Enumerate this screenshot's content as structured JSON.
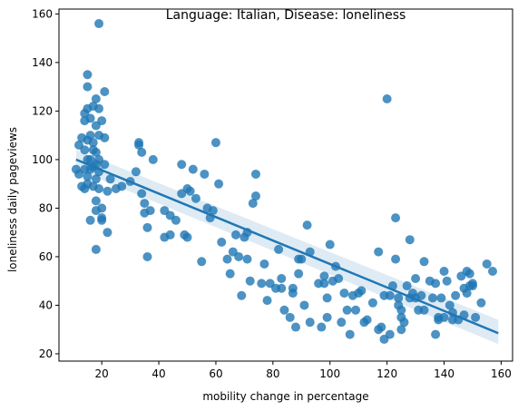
{
  "chart_data": {
    "type": "scatter",
    "title": "Language: Italian, Disease: loneliness",
    "xlabel": "mobility change in percentage",
    "ylabel": "loneliness daily pageviews",
    "xlim": [
      5,
      164
    ],
    "ylim": [
      17,
      162
    ],
    "xticks": [
      20,
      40,
      60,
      80,
      100,
      120,
      140,
      160
    ],
    "yticks": [
      20,
      40,
      60,
      80,
      100,
      120,
      140,
      160
    ],
    "grid": false,
    "point_color": "#1f77b4",
    "regression": {
      "x": [
        11,
        159
      ],
      "y": [
        100,
        28.5
      ],
      "ci_upper": [
        104,
        34
      ],
      "ci_lower": [
        96,
        24
      ]
    },
    "points": [
      [
        11,
        96
      ],
      [
        12,
        106
      ],
      [
        12,
        94
      ],
      [
        13,
        89
      ],
      [
        13,
        109
      ],
      [
        14,
        119
      ],
      [
        14,
        116
      ],
      [
        14,
        104
      ],
      [
        14,
        96
      ],
      [
        14,
        88
      ],
      [
        15,
        135
      ],
      [
        15,
        130
      ],
      [
        15,
        121
      ],
      [
        15,
        108
      ],
      [
        15,
        100
      ],
      [
        15,
        93
      ],
      [
        15,
        90
      ],
      [
        16,
        117
      ],
      [
        16,
        110
      ],
      [
        16,
        100
      ],
      [
        16,
        96
      ],
      [
        16,
        75
      ],
      [
        17,
        122
      ],
      [
        17,
        107
      ],
      [
        17,
        104
      ],
      [
        17,
        97
      ],
      [
        17,
        89
      ],
      [
        18,
        125
      ],
      [
        18,
        114
      ],
      [
        18,
        103
      ],
      [
        18,
        98
      ],
      [
        18,
        92
      ],
      [
        18,
        83
      ],
      [
        18,
        79
      ],
      [
        18,
        63
      ],
      [
        19,
        156
      ],
      [
        19,
        121
      ],
      [
        19,
        110
      ],
      [
        19,
        100
      ],
      [
        19,
        95
      ],
      [
        19,
        88
      ],
      [
        20,
        116
      ],
      [
        20,
        80
      ],
      [
        20,
        76
      ],
      [
        20,
        75
      ],
      [
        21,
        128
      ],
      [
        21,
        109
      ],
      [
        21,
        98
      ],
      [
        22,
        87
      ],
      [
        22,
        70
      ],
      [
        23,
        92
      ],
      [
        25,
        88
      ],
      [
        27,
        89
      ],
      [
        30,
        91
      ],
      [
        32,
        95
      ],
      [
        33,
        107
      ],
      [
        33,
        106
      ],
      [
        34,
        103
      ],
      [
        34,
        86
      ],
      [
        35,
        82
      ],
      [
        35,
        78
      ],
      [
        36,
        60
      ],
      [
        36,
        72
      ],
      [
        37,
        79
      ],
      [
        38,
        100
      ],
      [
        42,
        79
      ],
      [
        42,
        68
      ],
      [
        44,
        77
      ],
      [
        44,
        69
      ],
      [
        46,
        75
      ],
      [
        48,
        98
      ],
      [
        48,
        86
      ],
      [
        49,
        69
      ],
      [
        50,
        88
      ],
      [
        50,
        68
      ],
      [
        51,
        87
      ],
      [
        52,
        96
      ],
      [
        53,
        84
      ],
      [
        55,
        58
      ],
      [
        56,
        94
      ],
      [
        57,
        80
      ],
      [
        58,
        76
      ],
      [
        59,
        79
      ],
      [
        60,
        107
      ],
      [
        61,
        90
      ],
      [
        62,
        66
      ],
      [
        64,
        59
      ],
      [
        65,
        53
      ],
      [
        66,
        62
      ],
      [
        67,
        69
      ],
      [
        68,
        60
      ],
      [
        69,
        44
      ],
      [
        70,
        68
      ],
      [
        71,
        70
      ],
      [
        71,
        59
      ],
      [
        72,
        50
      ],
      [
        73,
        82
      ],
      [
        74,
        94
      ],
      [
        74,
        85
      ],
      [
        76,
        49
      ],
      [
        77,
        57
      ],
      [
        78,
        42
      ],
      [
        79,
        49
      ],
      [
        81,
        47
      ],
      [
        82,
        63
      ],
      [
        83,
        51
      ],
      [
        83,
        47
      ],
      [
        84,
        38
      ],
      [
        86,
        35
      ],
      [
        87,
        47
      ],
      [
        87,
        45
      ],
      [
        88,
        31
      ],
      [
        89,
        53
      ],
      [
        89,
        59
      ],
      [
        90,
        59
      ],
      [
        91,
        40
      ],
      [
        92,
        73
      ],
      [
        93,
        33
      ],
      [
        93,
        62
      ],
      [
        96,
        49
      ],
      [
        97,
        31
      ],
      [
        98,
        49
      ],
      [
        98,
        52
      ],
      [
        99,
        43
      ],
      [
        99,
        35
      ],
      [
        100,
        65
      ],
      [
        101,
        50
      ],
      [
        102,
        56
      ],
      [
        103,
        51
      ],
      [
        104,
        33
      ],
      [
        105,
        45
      ],
      [
        106,
        38
      ],
      [
        107,
        28
      ],
      [
        108,
        44
      ],
      [
        109,
        38
      ],
      [
        110,
        45
      ],
      [
        111,
        46
      ],
      [
        112,
        33
      ],
      [
        113,
        34
      ],
      [
        115,
        41
      ],
      [
        117,
        30
      ],
      [
        117,
        62
      ],
      [
        118,
        31
      ],
      [
        119,
        44
      ],
      [
        119,
        26
      ],
      [
        120,
        125
      ],
      [
        121,
        28
      ],
      [
        121,
        44
      ],
      [
        122,
        48
      ],
      [
        123,
        76
      ],
      [
        123,
        59
      ],
      [
        124,
        43
      ],
      [
        124,
        40
      ],
      [
        125,
        38
      ],
      [
        125,
        35
      ],
      [
        125,
        30
      ],
      [
        126,
        33
      ],
      [
        127,
        48
      ],
      [
        128,
        43
      ],
      [
        128,
        67
      ],
      [
        129,
        45
      ],
      [
        130,
        51
      ],
      [
        130,
        43
      ],
      [
        131,
        38
      ],
      [
        132,
        44
      ],
      [
        133,
        58
      ],
      [
        133,
        38
      ],
      [
        135,
        50
      ],
      [
        136,
        43
      ],
      [
        137,
        28
      ],
      [
        137,
        49
      ],
      [
        138,
        34
      ],
      [
        138,
        35
      ],
      [
        139,
        43
      ],
      [
        140,
        35
      ],
      [
        140,
        54
      ],
      [
        141,
        50
      ],
      [
        142,
        40
      ],
      [
        143,
        34
      ],
      [
        143,
        37
      ],
      [
        144,
        44
      ],
      [
        145,
        34
      ],
      [
        146,
        52
      ],
      [
        147,
        47
      ],
      [
        147,
        36
      ],
      [
        148,
        54
      ],
      [
        148,
        45
      ],
      [
        149,
        53
      ],
      [
        149,
        48
      ],
      [
        150,
        49
      ],
      [
        150,
        48
      ],
      [
        151,
        35
      ],
      [
        153,
        41
      ],
      [
        155,
        57
      ],
      [
        157,
        54
      ]
    ]
  }
}
